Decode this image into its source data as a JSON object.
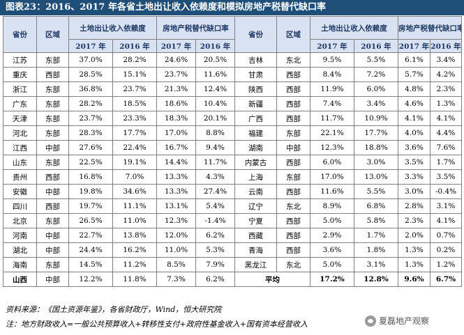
{
  "title": "图表23：2016、2017 年各省土地出让收入依赖度和模拟房地产税替代缺口率",
  "headers": {
    "province": "省份",
    "region": "区域",
    "land_dependency": "土地出让收入依赖度",
    "tax_gap": "房地产税替代缺口率",
    "y2017": "2017 年",
    "y2016": "2016 年"
  },
  "rows": [
    [
      {
        "p": "江苏",
        "r": "东部",
        "a": "37.0%",
        "b": "28.2%",
        "c": "24.6%",
        "d": "20.5%"
      },
      {
        "p": "吉林",
        "r": "东北",
        "a": "9.5%",
        "b": "5.5%",
        "c": "6.1%",
        "d": "3.4%"
      }
    ],
    [
      {
        "p": "重庆",
        "r": "西部",
        "a": "28.5%",
        "b": "15.1%",
        "c": "23.7%",
        "d": "11.6%"
      },
      {
        "p": "甘肃",
        "r": "西部",
        "a": "8.4%",
        "b": "7.2%",
        "c": "5.7%",
        "d": "4.2%"
      }
    ],
    [
      {
        "p": "浙江",
        "r": "东部",
        "a": "36.8%",
        "b": "23.7%",
        "c": "21.3%",
        "d": "12.4%"
      },
      {
        "p": "陕西",
        "r": "西部",
        "a": "11.9%",
        "b": "6.0%",
        "c": "4.8%",
        "d": "2.3%"
      }
    ],
    [
      {
        "p": "广东",
        "r": "东部",
        "a": "28.2%",
        "b": "18.5%",
        "c": "18.6%",
        "d": "10.4%"
      },
      {
        "p": "新疆",
        "r": "西部",
        "a": "7.4%",
        "b": "3.4%",
        "c": "4.6%",
        "d": "1.3%"
      }
    ],
    [
      {
        "p": "天津",
        "r": "东部",
        "a": "23.7%",
        "b": "23.3%",
        "c": "18.3%",
        "d": "20.1%"
      },
      {
        "p": "广西",
        "r": "西部",
        "a": "11.7%",
        "b": "10.9%",
        "c": "4.1%",
        "d": "4.1%"
      }
    ],
    [
      {
        "p": "河北",
        "r": "东部",
        "a": "28.3%",
        "b": "17.7%",
        "c": "17.0%",
        "d": "8.8%"
      },
      {
        "p": "福建",
        "r": "东部",
        "a": "22.1%",
        "b": "17.7%",
        "c": "4.0%",
        "d": "4.4%"
      }
    ],
    [
      {
        "p": "江西",
        "r": "中部",
        "a": "27.6%",
        "b": "22.4%",
        "c": "16.7%",
        "d": "9.4%"
      },
      {
        "p": "湖南",
        "r": "中部",
        "a": "12.3%",
        "b": "18.8%",
        "c": "3.6%",
        "d": "7.6%"
      }
    ],
    [
      {
        "p": "山东",
        "r": "东部",
        "a": "22.5%",
        "b": "19.1%",
        "c": "14.4%",
        "d": "11.7%"
      },
      {
        "p": "内蒙古",
        "r": "西部",
        "a": "6.0%",
        "b": "3.0%",
        "c": "3.5%",
        "d": "1.7%"
      }
    ],
    [
      {
        "p": "贵州",
        "r": "西部",
        "a": "16.8%",
        "b": "7.0%",
        "c": "13.3%",
        "d": "4.3%"
      },
      {
        "p": "上海",
        "r": "东部",
        "a": "17.0%",
        "b": "13.0%",
        "c": "3.3%",
        "d": "3.5%"
      }
    ],
    [
      {
        "p": "安徽",
        "r": "中部",
        "a": "19.8%",
        "b": "34.6%",
        "c": "13.3%",
        "d": "27.4%"
      },
      {
        "p": "云南",
        "r": "西部",
        "a": "11.6%",
        "b": "5.5%",
        "c": "3.0%",
        "d": "-0.4%"
      }
    ],
    [
      {
        "p": "四川",
        "r": "西部",
        "a": "19.7%",
        "b": "11.1%",
        "c": "13.1%",
        "d": "5.4%"
      },
      {
        "p": "辽宁",
        "r": "东北",
        "a": "8.9%",
        "b": "6.8%",
        "c": "2.8%",
        "d": "3.1%"
      }
    ],
    [
      {
        "p": "北京",
        "r": "东部",
        "a": "26.5%",
        "b": "11.0%",
        "c": "12.3%",
        "d": "-1.4%"
      },
      {
        "p": "宁夏",
        "r": "西部",
        "a": "5.0%",
        "b": "5.8%",
        "c": "2.3%",
        "d": "4.1%"
      }
    ],
    [
      {
        "p": "河南",
        "r": "中部",
        "a": "22.7%",
        "b": "13.8%",
        "c": "12.0%",
        "d": "6.2%"
      },
      {
        "p": "西藏",
        "r": "西部",
        "a": "2.9%",
        "b": "1.7%",
        "c": "2.0%",
        "d": "0.7%"
      }
    ],
    [
      {
        "p": "湖北",
        "r": "中部",
        "a": "24.4%",
        "b": "16.2%",
        "c": "11.0%",
        "d": "5.3%"
      },
      {
        "p": "青海",
        "r": "西部",
        "a": "3.6%",
        "b": "1.8%",
        "c": "1.3%",
        "d": "0.2%"
      }
    ],
    [
      {
        "p": "海南",
        "r": "东部",
        "a": "14.5%",
        "b": "11.2%",
        "c": "8.5%",
        "d": "7.9%"
      },
      {
        "p": "黑龙江",
        "r": "东北",
        "a": "5.0%",
        "b": "3.1%",
        "c": "1.3%",
        "d": "1.2%"
      }
    ]
  ],
  "last_row": {
    "p": "山西",
    "r": "中部",
    "a": "12.2%",
    "b": "11.8%",
    "c": "7.3%",
    "d": "6.2%"
  },
  "average": {
    "label": "平均",
    "a": "17.2%",
    "b": "12.8%",
    "c": "9.6%",
    "d": "6.7%"
  },
  "source": "资料来源：《国土资源年鉴》，各省财政厅，Wind，恒大研究院",
  "note": "注：地方财政收入=一般公共预算收入+转移性支付+政府性基金收入+国有资本经营收入",
  "watermark": "夏磊地产观察"
}
